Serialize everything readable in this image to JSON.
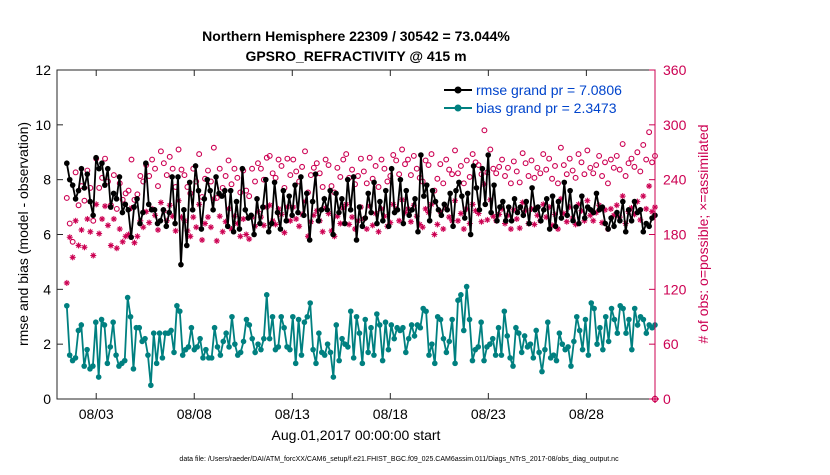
{
  "chart_data": {
    "type": "line",
    "title": "Northern Hemisphere 22309 / 30542 = 73.044%",
    "subtitle": "GPSRO_REFRACTIVITY @ 415 m",
    "xlabel": "Aug.01,2017 00:00:00 start",
    "ylabel_left": "rmse and bias (model - observation)",
    "ylabel_right": "# of obs: o=possible; ×=assimilated",
    "footer": "data file: /Users/raeder/DAI/ATM_forcXX/CAM6_setup/f.e21.FHIST_BGC.f09_025.CAM6assim.011/Diags_NTrS_2017-08/obs_diag_output.nc",
    "x_range_days": [
      0.5,
      31.0
    ],
    "x_ticks": [
      {
        "day": 2.5,
        "label": "08/03"
      },
      {
        "day": 7.5,
        "label": "08/08"
      },
      {
        "day": 12.5,
        "label": "08/13"
      },
      {
        "day": 17.5,
        "label": "08/18"
      },
      {
        "day": 22.5,
        "label": "08/23"
      },
      {
        "day": 27.5,
        "label": "08/28"
      }
    ],
    "y_left": {
      "range": [
        0,
        12
      ],
      "ticks": [
        "0",
        "2",
        "4",
        "6",
        "8",
        "10",
        "12"
      ]
    },
    "y_right": {
      "range": [
        0,
        360
      ],
      "ticks": [
        "0",
        "60",
        "120",
        "180",
        "240",
        "300",
        "360"
      ]
    },
    "legend_position": "top-right",
    "colors": {
      "rmse": "#000000",
      "bias": "#008080",
      "obs": "#cc0052",
      "legend_text": "#0044cc",
      "right_axis": "#cc0052"
    },
    "series": [
      {
        "name": "rmse grand pr = 7.0806",
        "color": "#000000",
        "marker": "circle-filled",
        "axis": "left",
        "values": [
          8.6,
          8.0,
          7.8,
          7.3,
          7.6,
          8.4,
          7.7,
          8.2,
          7.2,
          6.7,
          8.8,
          8.4,
          8.6,
          7.8,
          8.4,
          7.0,
          7.5,
          7.3,
          8.1,
          6.8,
          7.1,
          6.9,
          5.9,
          7.0,
          7.3,
          6.4,
          6.8,
          8.6,
          7.1,
          6.9,
          6.9,
          6.4,
          6.5,
          6.9,
          6.3,
          6.8,
          8.1,
          6.4,
          8.1,
          4.9,
          6.9,
          5.6,
          7.9,
          6.9,
          8.5,
          7.6,
          6.2,
          7.3,
          8.0,
          7.6,
          6.9,
          8.1,
          7.5,
          7.4,
          7.6,
          6.3,
          7.6,
          6.1,
          7.2,
          6.2,
          8.4,
          6.9,
          6.6,
          6.7,
          6.0,
          7.3,
          6.4,
          7.0,
          8.0,
          6.1,
          6.4,
          7.9,
          6.8,
          6.2,
          7.6,
          6.5,
          7.4,
          6.7,
          7.8,
          6.8,
          8.1,
          6.7,
          7.5,
          5.8,
          7.2,
          8.2,
          6.5,
          6.9,
          7.3,
          6.9,
          7.6,
          6.0,
          7.5,
          6.8,
          7.3,
          6.4,
          8.0,
          6.9,
          8.1,
          5.8,
          7.0,
          6.3,
          6.6,
          7.5,
          6.8,
          7.9,
          6.4,
          7.2,
          6.5,
          7.6,
          6.3,
          8.4,
          6.8,
          6.9,
          8.0,
          6.4,
          7.6,
          6.7,
          6.9,
          7.3,
          6.1,
          8.9,
          7.4,
          7.8,
          6.5,
          7.6,
          7.2,
          6.9,
          6.7,
          7.1,
          6.9,
          7.5,
          6.3,
          7.6,
          7.9,
          7.4,
          6.6,
          7.5,
          6.0,
          8.5,
          7.7,
          6.9,
          8.4,
          7.1,
          8.9,
          6.8,
          7.8,
          6.5,
          7.0,
          7.2,
          6.5,
          7.0,
          6.5,
          7.3,
          6.8,
          7.0,
          6.7,
          7.2,
          6.4,
          7.7,
          6.9,
          7.0,
          6.5,
          6.9,
          7.3,
          6.2,
          7.4,
          6.3,
          7.2,
          6.6,
          7.9,
          6.7,
          7.6,
          6.5,
          7.0,
          6.4,
          7.4,
          6.6,
          7.0,
          6.9,
          6.8,
          7.5,
          6.9,
          7.0,
          6.4,
          6.2,
          6.6,
          6.3,
          6.8,
          6.5,
          7.2,
          6.1,
          6.9,
          6.5,
          7.2,
          6.8,
          6.9,
          6.1,
          6.4,
          6.3,
          6.6,
          6.7
        ]
      },
      {
        "name": "bias grand pr = 2.3473",
        "color": "#008080",
        "marker": "circle-filled",
        "axis": "left",
        "values": [
          3.4,
          1.6,
          1.4,
          1.5,
          2.5,
          2.7,
          1.2,
          1.8,
          1.1,
          1.2,
          2.8,
          0.8,
          2.9,
          2.7,
          1.3,
          1.9,
          2.8,
          1.6,
          1.2,
          1.3,
          1.4,
          3.7,
          3.0,
          1.1,
          2.6,
          2.6,
          2.1,
          2.2,
          1.6,
          0.5,
          2.4,
          1.3,
          2.4,
          1.5,
          2.4,
          2.4,
          2.5,
          1.7,
          3.4,
          3.2,
          1.6,
          1.8,
          1.9,
          2.6,
          1.8,
          1.9,
          2.2,
          1.5,
          1.8,
          1.5,
          1.5,
          2.6,
          1.9,
          1.6,
          2.1,
          2.4,
          1.9,
          3.0,
          2.0,
          1.6,
          1.7,
          2.1,
          2.9,
          2.7,
          2.2,
          1.7,
          2.0,
          1.8,
          2.2,
          3.8,
          2.2,
          3.0,
          1.8,
          1.9,
          3.0,
          2.6,
          1.9,
          1.8,
          3.0,
          1.3,
          2.9,
          1.6,
          2.8,
          3.0,
          3.5,
          1.8,
          1.3,
          2.4,
          1.7,
          1.6,
          2.0,
          1.7,
          0.8,
          2.7,
          1.4,
          2.2,
          2.0,
          1.9,
          3.2,
          1.5,
          3.0,
          2.4,
          1.3,
          2.9,
          1.7,
          2.6,
          1.6,
          3.1,
          2.7,
          1.4,
          2.8,
          1.8,
          2.7,
          2.2,
          2.6,
          2.5,
          2.6,
          1.7,
          2.2,
          2.7,
          2.3,
          2.7,
          2.6,
          3.3,
          3.2,
          1.6,
          2.0,
          1.3,
          3.0,
          2.9,
          2.2,
          1.7,
          2.1,
          2.9,
          1.3,
          3.6,
          3.8,
          2.5,
          4.1,
          2.9,
          1.4,
          1.8,
          1.9,
          2.8,
          1.4,
          1.9,
          2.0,
          2.2,
          1.6,
          2.6,
          1.6,
          3.2,
          2.3,
          1.5,
          1.2,
          2.6,
          2.4,
          1.7,
          2.3,
          1.9,
          2.0,
          1.5,
          2.5,
          1.7,
          1.0,
          1.8,
          2.8,
          1.5,
          1.6,
          1.4,
          2.4,
          2.0,
          1.8,
          1.9,
          1.2,
          2.1,
          3.0,
          2.5,
          1.8,
          2.9,
          1.6,
          3.5,
          3.3,
          2.0,
          2.6,
          1.8,
          3.0,
          2.1,
          3.3,
          2.9,
          2.4,
          3.4,
          3.3,
          2.4,
          2.9,
          1.8,
          3.3,
          2.7,
          3.0,
          2.9,
          2.4,
          2.7,
          2.6,
          2.7
        ]
      }
    ],
    "obs_possible": [
      220,
      192,
      172,
      248,
      212,
      233,
      217,
      250,
      231,
      195,
      263,
      231,
      242,
      263,
      238,
      212,
      245,
      208,
      236,
      218,
      225,
      228,
      262,
      218,
      224,
      244,
      238,
      256,
      244,
      262,
      252,
      233,
      271,
      258,
      245,
      265,
      252,
      232,
      273,
      251,
      245,
      232,
      225,
      252,
      238,
      268,
      221,
      241,
      250,
      238,
      275,
      220,
      252,
      231,
      244,
      261,
      235,
      252,
      242,
      226,
      250,
      228,
      222,
      252,
      238,
      258,
      252,
      240,
      264,
      266,
      247,
      242,
      262,
      255,
      231,
      263,
      245,
      262,
      249,
      238,
      254,
      271,
      226,
      245,
      253,
      258,
      247,
      232,
      262,
      256,
      233,
      226,
      253,
      243,
      262,
      268,
      242,
      251,
      235,
      244,
      263,
      249,
      236,
      264,
      241,
      255,
      232,
      262,
      252,
      238,
      244,
      267,
      261,
      246,
      273,
      257,
      262,
      245,
      266,
      252,
      242,
      238,
      261,
      256,
      268,
      228,
      241,
      257,
      236,
      262,
      251,
      246,
      272,
      247,
      255,
      236,
      261,
      243,
      268,
      259,
      256,
      246,
      294,
      248,
      273,
      252,
      247,
      254,
      262,
      244,
      253,
      236,
      260,
      249,
      237,
      269,
      258,
      244,
      261,
      242,
      253,
      247,
      268,
      251,
      263,
      241,
      255,
      236,
      275,
      256,
      246,
      263,
      250,
      242,
      268,
      259,
      246,
      272,
      253,
      247,
      256,
      266,
      244,
      259,
      236,
      262,
      253,
      266,
      251,
      279,
      244,
      258,
      263,
      254,
      270,
      249,
      278,
      262,
      292,
      259,
      266
    ],
    "obs_assimilated": [
      127,
      177,
      155,
      195,
      168,
      185,
      166,
      197,
      183,
      157,
      213,
      181,
      197,
      211,
      190,
      168,
      197,
      165,
      186,
      172,
      178,
      180,
      209,
      171,
      178,
      195,
      188,
      205,
      193,
      208,
      201,
      185,
      215,
      206,
      195,
      212,
      200,
      184,
      217,
      199,
      195,
      184,
      178,
      199,
      188,
      213,
      174,
      192,
      199,
      188,
      219,
      173,
      200,
      183,
      194,
      208,
      186,
      200,
      192,
      178,
      197,
      180,
      175,
      199,
      189,
      205,
      199,
      190,
      210,
      212,
      195,
      191,
      208,
      202,
      182,
      210,
      195,
      210,
      197,
      189,
      202,
      216,
      178,
      194,
      201,
      206,
      195,
      183,
      209,
      203,
      184,
      178,
      200,
      192,
      209,
      213,
      191,
      199,
      186,
      195,
      210,
      197,
      186,
      211,
      190,
      203,
      183,
      208,
      200,
      189,
      193,
      213,
      208,
      195,
      218,
      204,
      208,
      194,
      212,
      200,
      191,
      188,
      208,
      204,
      213,
      180,
      191,
      205,
      186,
      209,
      199,
      195,
      217,
      195,
      203,
      186,
      208,
      192,
      213,
      206,
      203,
      194,
      235,
      196,
      218,
      200,
      195,
      202,
      208,
      192,
      201,
      186,
      207,
      197,
      187,
      215,
      206,
      192,
      208,
      191,
      201,
      195,
      213,
      199,
      210,
      190,
      202,
      186,
      219,
      203,
      194,
      210,
      198,
      191,
      213,
      206,
      195,
      217,
      201,
      195,
      204,
      212,
      193,
      207,
      186,
      208,
      201,
      212,
      199,
      222,
      192,
      205,
      209,
      202,
      216,
      196,
      222,
      208,
      233,
      205,
      210
    ]
  }
}
